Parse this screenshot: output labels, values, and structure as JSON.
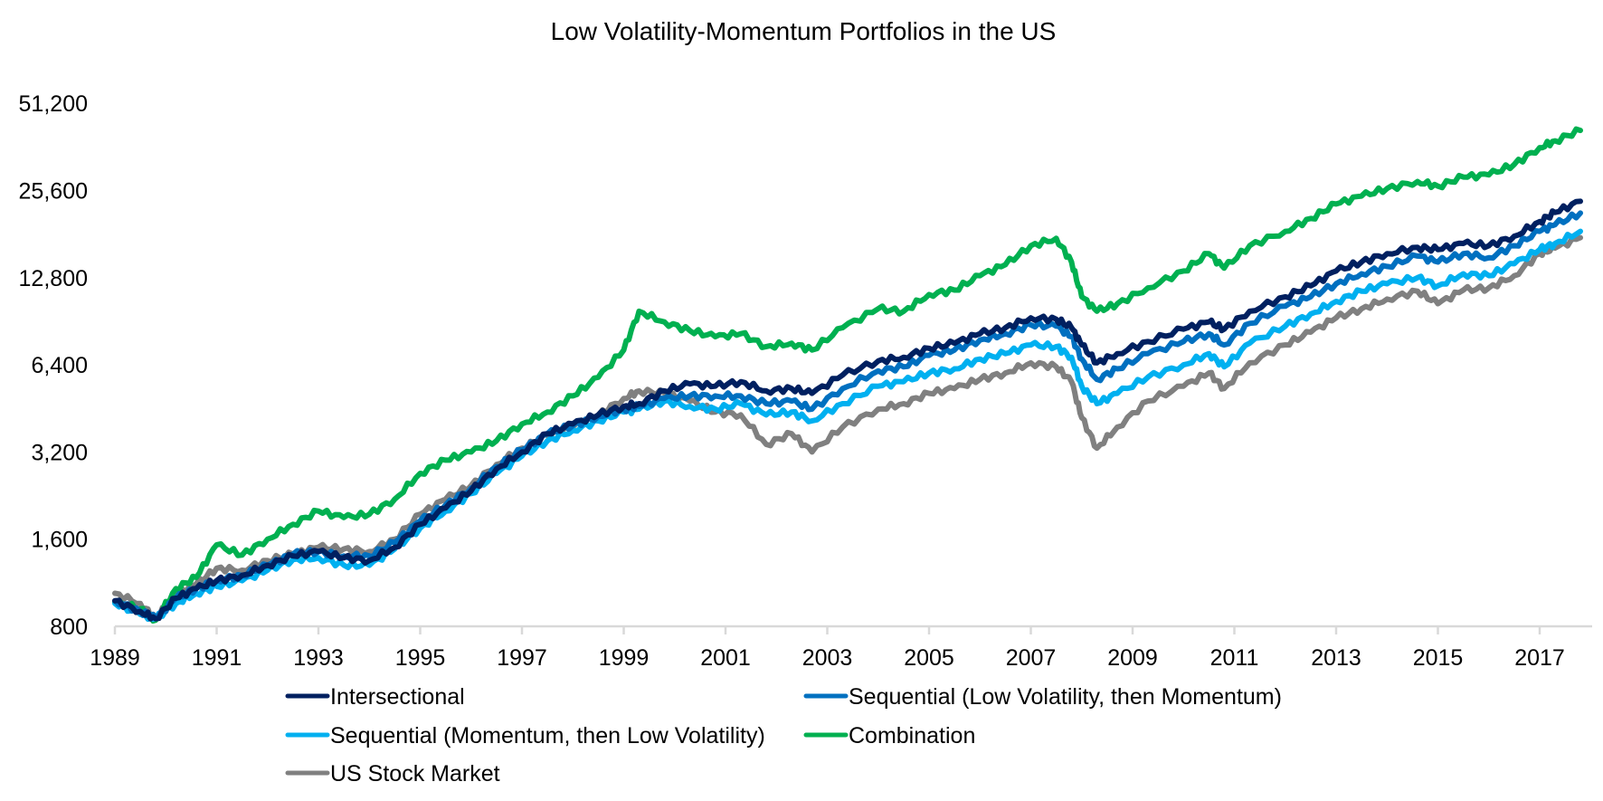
{
  "chart_data": {
    "type": "line",
    "title": "Low Volatility-Momentum Portfolios in the US",
    "xlabel": "",
    "ylabel": "",
    "y_scale": "log2",
    "ylim": [
      800,
      51200
    ],
    "xlim": [
      1989,
      2017.8
    ],
    "grid": false,
    "legend_position": "bottom",
    "y_ticks": [
      800,
      1600,
      3200,
      6400,
      12800,
      25600,
      51200
    ],
    "y_tick_labels": [
      "800",
      "1,600",
      "3,200",
      "6,400",
      "12,800",
      "25,600",
      "51,200"
    ],
    "x_ticks": [
      1989,
      1991,
      1993,
      1995,
      1997,
      1999,
      2001,
      2003,
      2005,
      2007,
      2009,
      2011,
      2013,
      2015,
      2017
    ],
    "x_tick_labels": [
      "1989",
      "1991",
      "1993",
      "1995",
      "1997",
      "1999",
      "2001",
      "2003",
      "2005",
      "2007",
      "2009",
      "2011",
      "2013",
      "2015",
      "2017"
    ],
    "x": [
      1989.0,
      1989.5,
      1989.8,
      1990.2,
      1990.6,
      1991.0,
      1991.5,
      1992.0,
      1992.5,
      1993.0,
      1993.5,
      1994.0,
      1994.5,
      1995.0,
      1995.5,
      1996.0,
      1996.5,
      1997.0,
      1997.5,
      1998.0,
      1998.5,
      1999.0,
      1999.3,
      1999.8,
      2000.3,
      2000.8,
      2001.3,
      2001.8,
      2002.3,
      2002.7,
      2003.3,
      2004.0,
      2004.5,
      2005.0,
      2005.5,
      2006.0,
      2006.5,
      2007.0,
      2007.5,
      2007.8,
      2008.0,
      2008.3,
      2008.7,
      2009.3,
      2010.0,
      2010.5,
      2010.8,
      2011.3,
      2012.0,
      2012.5,
      2013.0,
      2013.5,
      2014.0,
      2014.6,
      2015.0,
      2015.5,
      2016.0,
      2016.5,
      2017.0,
      2017.3,
      2017.8
    ],
    "series": [
      {
        "name": "Intersectional",
        "color": "#002060",
        "values": [
          980,
          900,
          850,
          1000,
          1080,
          1150,
          1200,
          1300,
          1400,
          1450,
          1380,
          1350,
          1500,
          1800,
          2050,
          2350,
          2800,
          3200,
          3700,
          4000,
          4300,
          4600,
          4700,
          5200,
          5500,
          5400,
          5600,
          5200,
          5300,
          5100,
          5900,
          6600,
          6800,
          7300,
          7600,
          8200,
          8600,
          9300,
          9200,
          8600,
          7500,
          6500,
          7000,
          7700,
          8500,
          9000,
          8500,
          9800,
          11000,
          12000,
          13500,
          14500,
          15500,
          16300,
          16000,
          16800,
          16500,
          17800,
          20000,
          21500,
          23500
        ]
      },
      {
        "name": "Sequential (Low Volatility, then Momentum)",
        "color": "#0070C0",
        "values": [
          980,
          900,
          850,
          1000,
          1080,
          1150,
          1200,
          1300,
          1420,
          1450,
          1400,
          1400,
          1560,
          1850,
          2100,
          2400,
          2850,
          3250,
          3700,
          3950,
          4250,
          4500,
          4600,
          4900,
          5000,
          5000,
          5000,
          4700,
          4800,
          4500,
          5300,
          6100,
          6300,
          6900,
          7200,
          7800,
          8200,
          8800,
          8700,
          8000,
          6700,
          5700,
          6200,
          7000,
          7700,
          8200,
          7500,
          8900,
          10200,
          11000,
          12200,
          13200,
          14000,
          15200,
          14500,
          15500,
          15000,
          16500,
          18500,
          19500,
          21400
        ]
      },
      {
        "name": "Sequential (Momentum, then Low Volatility)",
        "color": "#00B0F0",
        "values": [
          960,
          880,
          850,
          960,
          1040,
          1100,
          1150,
          1250,
          1360,
          1380,
          1300,
          1300,
          1480,
          1750,
          2000,
          2300,
          2700,
          3100,
          3500,
          3800,
          4100,
          4400,
          4500,
          4800,
          4600,
          4500,
          4700,
          4300,
          4400,
          4100,
          4700,
          5400,
          5600,
          6000,
          6200,
          6700,
          7000,
          7500,
          7400,
          6800,
          5400,
          4700,
          5100,
          5800,
          6400,
          7000,
          6300,
          7600,
          8700,
          9600,
          10600,
          11500,
          12200,
          12800,
          12000,
          13200,
          13000,
          14300,
          16000,
          16800,
          18500
        ]
      },
      {
        "name": "Combination",
        "color": "#00B050",
        "values": [
          970,
          920,
          840,
          1080,
          1180,
          1530,
          1410,
          1600,
          1800,
          2000,
          1900,
          1950,
          2200,
          2700,
          3000,
          3200,
          3500,
          4000,
          4400,
          5000,
          5800,
          7200,
          9800,
          9000,
          8400,
          8000,
          8200,
          7400,
          7600,
          7200,
          8600,
          10000,
          9800,
          11200,
          11600,
          13000,
          14200,
          16500,
          17500,
          14500,
          11000,
          9800,
          10400,
          11800,
          13500,
          15500,
          13800,
          16500,
          18500,
          20500,
          23000,
          24500,
          26000,
          27500,
          26500,
          28500,
          29000,
          31500,
          36000,
          38000,
          41300
        ]
      },
      {
        "name": "US Stock Market",
        "color": "#808080",
        "values": [
          1040,
          960,
          850,
          1030,
          1120,
          1270,
          1250,
          1350,
          1420,
          1500,
          1480,
          1450,
          1600,
          1950,
          2200,
          2450,
          2900,
          3300,
          3650,
          3900,
          4300,
          4900,
          5200,
          5100,
          4800,
          4400,
          4300,
          3400,
          3700,
          3200,
          3900,
          4500,
          4700,
          5100,
          5300,
          5700,
          6000,
          6500,
          6300,
          5600,
          4200,
          3300,
          3900,
          4800,
          5400,
          6000,
          5300,
          6500,
          7500,
          8300,
          9300,
          10000,
          10800,
          11500,
          10400,
          11600,
          11800,
          13000,
          15500,
          16200,
          17600
        ]
      }
    ]
  }
}
